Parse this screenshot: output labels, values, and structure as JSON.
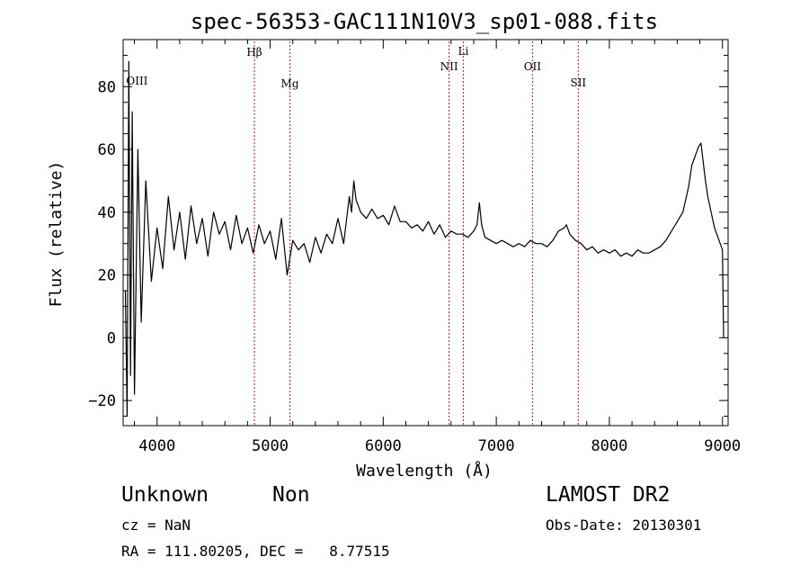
{
  "chart_data": {
    "type": "line",
    "title": "spec-56353-GAC111N10V3_sp01-088.fits",
    "xlabel": "Wavelength (Å)",
    "ylabel": "Flux (relative)",
    "xlim": [
      3700,
      9050
    ],
    "ylim": [
      -28,
      95
    ],
    "x_ticks": [
      4000,
      5000,
      6000,
      7000,
      8000,
      9000
    ],
    "y_ticks": [
      -20,
      0,
      20,
      40,
      60,
      80
    ],
    "grid": false,
    "line_color": "#000000",
    "marker_color": "#b22222",
    "line_markers": [
      {
        "label": "OIII",
        "x": 3727
      },
      {
        "label": "Hβ",
        "x": 4861
      },
      {
        "label": "Mg",
        "x": 5175
      },
      {
        "label": "NII",
        "x": 6583
      },
      {
        "label": "Li",
        "x": 6708
      },
      {
        "label": "OII",
        "x": 7320
      },
      {
        "label": "SII",
        "x": 7725
      }
    ],
    "series": [
      {
        "x": [
          3720,
          3735,
          3750,
          3765,
          3780,
          3800,
          3830,
          3860,
          3900,
          3950,
          4000,
          4050,
          4100,
          4150,
          4200,
          4250,
          4300,
          4350,
          4400,
          4450,
          4500,
          4550,
          4600,
          4650,
          4700,
          4750,
          4800,
          4850,
          4900,
          4950,
          5000,
          5050,
          5100,
          5150,
          5200,
          5250,
          5300,
          5350,
          5400,
          5450,
          5500,
          5550,
          5600,
          5650,
          5700,
          5720,
          5740,
          5760,
          5800,
          5850,
          5900,
          5950,
          6000,
          6050,
          6100,
          6150,
          6200,
          6250,
          6300,
          6350,
          6400,
          6450,
          6500,
          6550,
          6600,
          6650,
          6700,
          6750,
          6800,
          6830,
          6850,
          6870,
          6900,
          6950,
          7000,
          7050,
          7100,
          7150,
          7200,
          7250,
          7300,
          7350,
          7400,
          7450,
          7500,
          7550,
          7600,
          7620,
          7650,
          7700,
          7750,
          7800,
          7850,
          7900,
          7950,
          8000,
          8050,
          8100,
          8150,
          8200,
          8250,
          8300,
          8350,
          8400,
          8450,
          8500,
          8550,
          8600,
          8650,
          8700,
          8730,
          8760,
          8790,
          8810,
          8830,
          8850,
          8870,
          8900,
          8930,
          8960,
          8980,
          9000,
          9010
        ],
        "y": [
          15,
          -25,
          88,
          -12,
          72,
          -18,
          60,
          5,
          50,
          18,
          35,
          22,
          45,
          28,
          40,
          25,
          42,
          30,
          38,
          26,
          40,
          33,
          37,
          28,
          39,
          30,
          35,
          27,
          36,
          30,
          34,
          25,
          38,
          20,
          31,
          28,
          30,
          24,
          32,
          27,
          33,
          30,
          38,
          30,
          45,
          40,
          50,
          44,
          40,
          38,
          41,
          38,
          39,
          36,
          42,
          37,
          37,
          35,
          36,
          34,
          37,
          33,
          36,
          32,
          34,
          33,
          33,
          32,
          34,
          36,
          43,
          36,
          32,
          31,
          30,
          31,
          30,
          29,
          30,
          29,
          31,
          30,
          30,
          29,
          31,
          34,
          35,
          36,
          33,
          31,
          30,
          28,
          29,
          27,
          28,
          27,
          28,
          26,
          27,
          26,
          28,
          27,
          27,
          28,
          29,
          31,
          34,
          37,
          40,
          48,
          55,
          58,
          61,
          62,
          56,
          50,
          45,
          40,
          35,
          32,
          30,
          28,
          0
        ]
      }
    ]
  },
  "info": {
    "object_class": "Unknown",
    "subclass": "Non",
    "survey": "LAMOST DR2",
    "cz": "cz = NaN",
    "obs_date": "Obs-Date: 20130301",
    "coords": "RA = 111.80205, DEC =   8.77515"
  }
}
